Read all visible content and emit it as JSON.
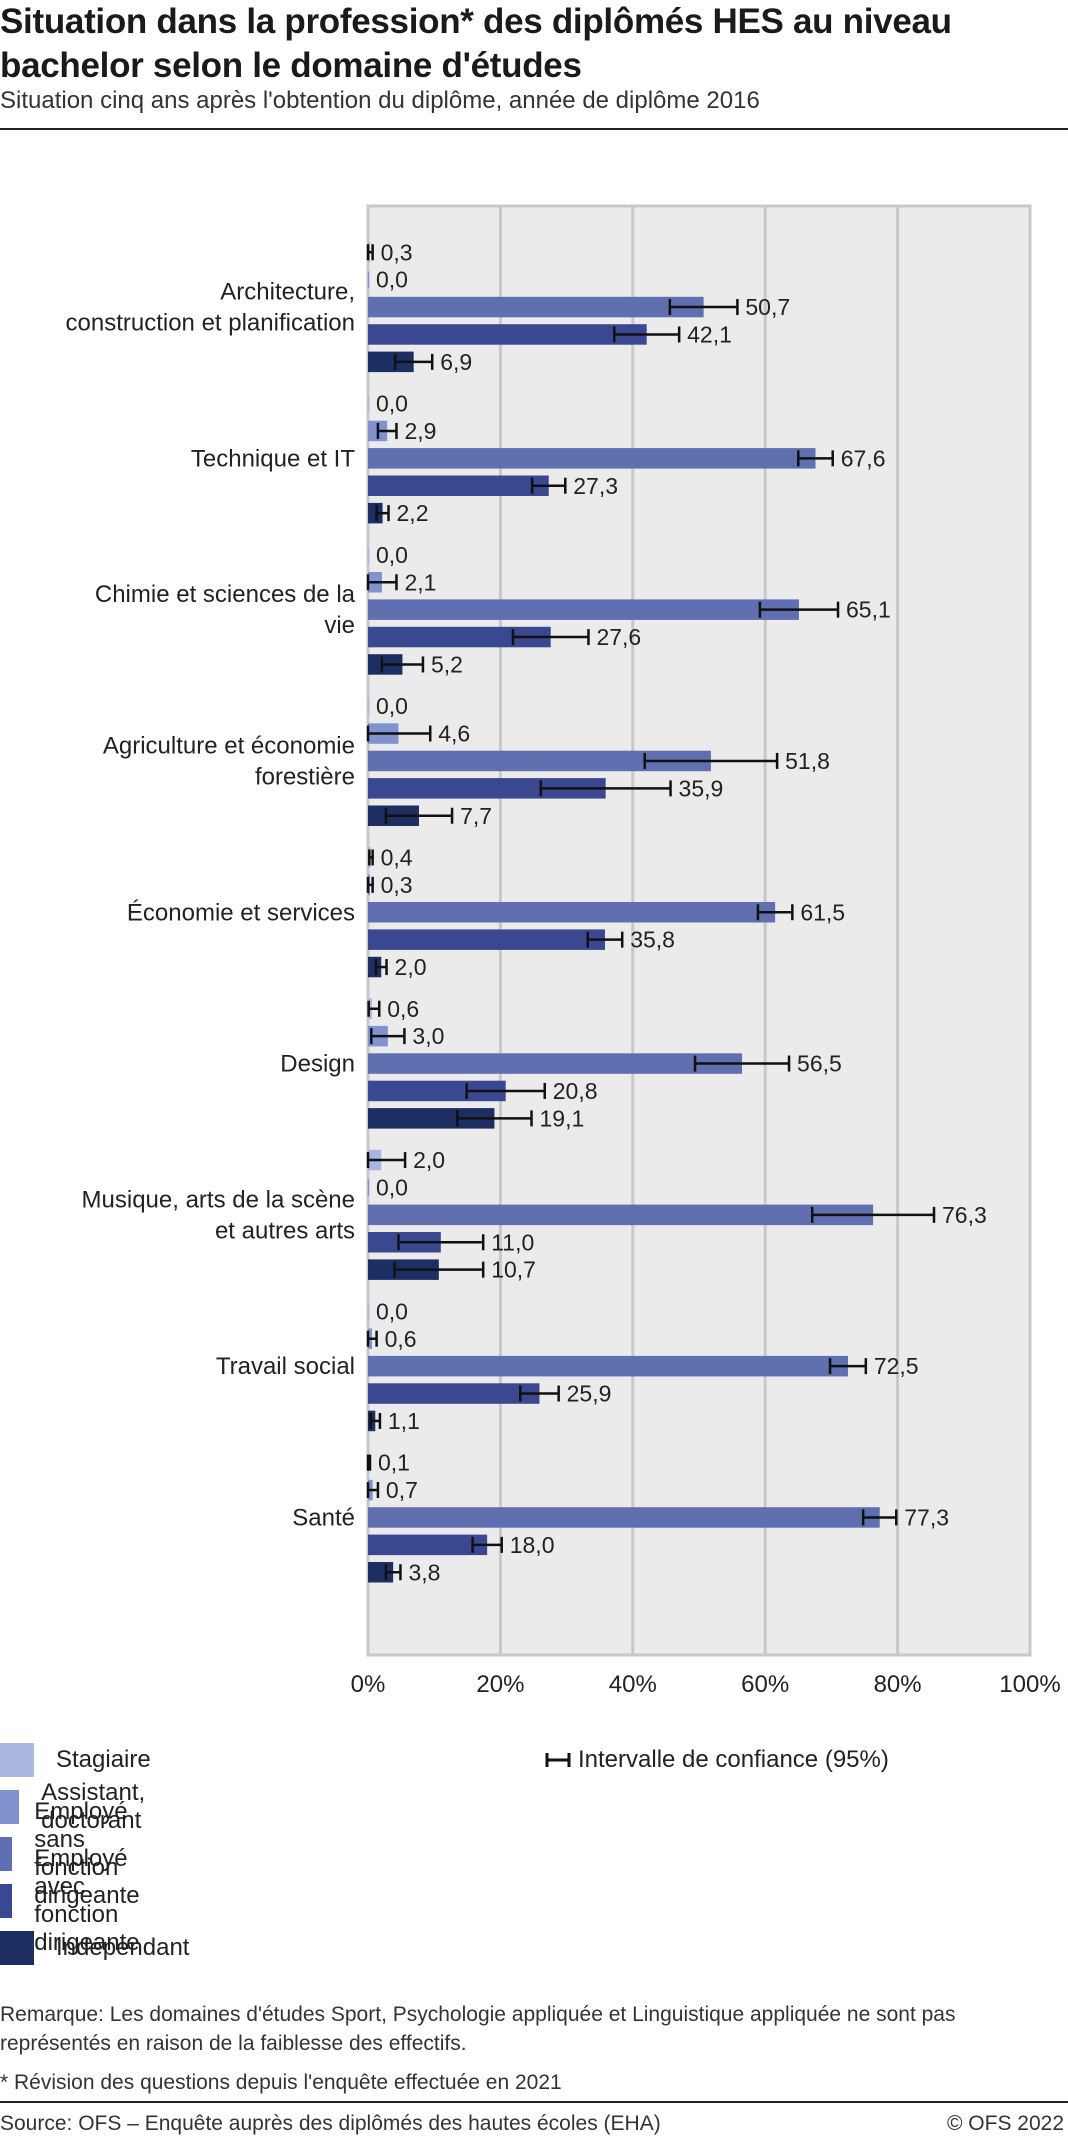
{
  "header": {
    "title": "Situation dans la profession* des diplômés HES au niveau bachelor selon le domaine d'études",
    "subtitle": "Situation cinq ans après l'obtention du diplôme, année de diplôme 2016"
  },
  "legend": {
    "items": [
      {
        "label": "Stagiaire",
        "color": "#a9b6e0"
      },
      {
        "label": "Assistant, doctorant",
        "color": "#8193cf"
      },
      {
        "label": "Employé sans fonction dirigeante",
        "color": "#5f6fb0"
      },
      {
        "label": "Employé avec fonction dirigeante",
        "color": "#3a4892"
      },
      {
        "label": "Indépendant",
        "color": "#1d2e63"
      }
    ],
    "ci_label": "Intervalle de confiance (95%)"
  },
  "notes": {
    "remark": "Remarque: Les domaines d'études Sport, Psychologie appliquée et Linguistique appliquée ne sont pas représentés en raison de la faiblesse des effectifs.",
    "revision": "* Révision des questions depuis l'enquête effectuée en 2021"
  },
  "footer": {
    "source": "Source: OFS – Enquête auprès des diplômés des hautes écoles (EHA)",
    "copyright": "© OFS 2022"
  },
  "chart_data": {
    "type": "bar",
    "orientation": "horizontal",
    "categories": [
      [
        "Architecture,",
        "construction et planification"
      ],
      [
        "Technique et IT"
      ],
      [
        "Chimie et sciences de la",
        "vie"
      ],
      [
        "Agriculture et économie",
        "forestière"
      ],
      [
        "Économie et services"
      ],
      [
        "Design"
      ],
      [
        "Musique, arts de la scène",
        "et autres arts"
      ],
      [
        "Travail social"
      ],
      [
        "Santé"
      ]
    ],
    "series": [
      {
        "name": "Stagiaire",
        "color": "#a9b6e0",
        "values": [
          0.3,
          0.0,
          0.0,
          0.0,
          0.4,
          0.6,
          2.0,
          0.0,
          0.1
        ],
        "labels": [
          "0,3",
          "0,0",
          "0,0",
          "0,0",
          "0,4",
          "0,6",
          "2,0",
          "0,0",
          "0,1"
        ],
        "ci": [
          [
            0.0,
            0.7
          ],
          null,
          null,
          null,
          [
            0.2,
            0.7
          ],
          [
            0.1,
            1.7
          ],
          [
            0.0,
            5.6
          ],
          null,
          [
            0.0,
            0.3
          ]
        ]
      },
      {
        "name": "Assistant, doctorant",
        "color": "#8193cf",
        "values": [
          0.0,
          2.9,
          2.1,
          4.6,
          0.3,
          3.0,
          0.0,
          0.6,
          0.7
        ],
        "labels": [
          "0,0",
          "2,9",
          "2,1",
          "4,6",
          "0,3",
          "3,0",
          "0,0",
          "0,6",
          "0,7"
        ],
        "ci": [
          null,
          [
            1.5,
            4.3
          ],
          [
            0.0,
            4.3
          ],
          [
            0.0,
            9.4
          ],
          [
            0.0,
            0.7
          ],
          [
            0.5,
            5.5
          ],
          null,
          [
            0.0,
            1.3
          ],
          [
            0.0,
            1.5
          ]
        ]
      },
      {
        "name": "Employé sans fonction dirigeante",
        "color": "#5f6fb0",
        "values": [
          50.7,
          67.6,
          65.1,
          51.8,
          61.5,
          56.5,
          76.3,
          72.5,
          77.3
        ],
        "labels": [
          "50,7",
          "67,6",
          "65,1",
          "51,8",
          "61,5",
          "56,5",
          "76,3",
          "72,5",
          "77,3"
        ],
        "ci": [
          [
            45.6,
            55.8
          ],
          [
            65.0,
            70.2
          ],
          [
            59.2,
            71.0
          ],
          [
            41.8,
            61.8
          ],
          [
            58.9,
            64.1
          ],
          [
            49.4,
            63.6
          ],
          [
            67.1,
            85.5
          ],
          [
            69.8,
            75.2
          ],
          [
            74.8,
            79.8
          ]
        ]
      },
      {
        "name": "Employé avec fonction dirigeante",
        "color": "#3a4892",
        "values": [
          42.1,
          27.3,
          27.6,
          35.9,
          35.8,
          20.8,
          11.0,
          25.9,
          18.0
        ],
        "labels": [
          "42,1",
          "27,3",
          "27,6",
          "35,9",
          "35,8",
          "20,8",
          "11,0",
          "25,9",
          "18,0"
        ],
        "ci": [
          [
            37.2,
            47.0
          ],
          [
            24.8,
            29.8
          ],
          [
            21.9,
            33.3
          ],
          [
            26.1,
            45.7
          ],
          [
            33.2,
            38.4
          ],
          [
            14.9,
            26.7
          ],
          [
            4.6,
            17.4
          ],
          [
            23.0,
            28.8
          ],
          [
            15.8,
            20.2
          ]
        ]
      },
      {
        "name": "Indépendant",
        "color": "#1d2e63",
        "values": [
          6.9,
          2.2,
          5.2,
          7.7,
          2.0,
          19.1,
          10.7,
          1.1,
          3.8
        ],
        "labels": [
          "6,9",
          "2,2",
          "5,2",
          "7,7",
          "2,0",
          "19,1",
          "10,7",
          "1,1",
          "3,8"
        ],
        "ci": [
          [
            4.1,
            9.7
          ],
          [
            1.3,
            3.1
          ],
          [
            2.1,
            8.3
          ],
          [
            2.7,
            12.7
          ],
          [
            1.2,
            2.8
          ],
          [
            13.5,
            24.7
          ],
          [
            4.0,
            17.4
          ],
          [
            0.4,
            1.8
          ],
          [
            2.7,
            4.9
          ]
        ]
      }
    ],
    "xlim": [
      0,
      100
    ],
    "xticks": [
      "0%",
      "20%",
      "40%",
      "60%",
      "80%",
      "100%"
    ],
    "grid": true
  }
}
